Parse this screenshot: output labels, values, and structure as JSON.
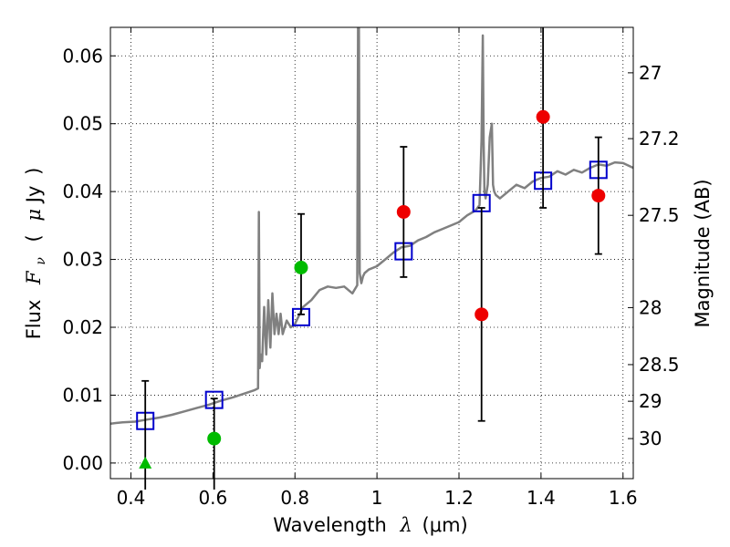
{
  "chart_data": {
    "type": "scatter",
    "xlabel_main": "Wavelength",
    "xlabel_symbol": "λ",
    "xlabel_unit": "(μm)",
    "ylabel_main": "Flux",
    "ylabel_symbol": "F",
    "ylabel_subscript": "ν",
    "ylabel_paren_open": "(",
    "ylabel_mu": "μ",
    "ylabel_unit": "Jy",
    "ylabel_paren_close": ")",
    "y2label": "Magnitude (AB)",
    "xlim": [
      0.35,
      1.625
    ],
    "ylim": [
      -0.0023,
      0.0642
    ],
    "xticks": [
      0.4,
      0.6,
      0.8,
      1.0,
      1.2,
      1.4,
      1.6
    ],
    "xtick_labels": [
      "0.4",
      "0.6",
      "0.8",
      "1",
      "1.2",
      "1.4",
      "1.6"
    ],
    "yticks": [
      0.0,
      0.01,
      0.02,
      0.03,
      0.04,
      0.05,
      0.06
    ],
    "ytick_labels": [
      "0.00",
      "0.01",
      "0.02",
      "0.03",
      "0.04",
      "0.05",
      "0.06"
    ],
    "y2_ticks": [
      {
        "label": "27",
        "flux": 0.0575
      },
      {
        "label": "27.2",
        "flux": 0.0478
      },
      {
        "label": "27.5",
        "flux": 0.0365
      },
      {
        "label": "28",
        "flux": 0.0229
      },
      {
        "label": "28.5",
        "flux": 0.0145
      },
      {
        "label": "29",
        "flux": 0.0091
      },
      {
        "label": "30",
        "flux": 0.0036
      }
    ],
    "grid": true,
    "series": [
      {
        "kind": "line",
        "color": "#808080",
        "x": [
          0.35,
          0.38,
          0.41,
          0.44,
          0.47,
          0.5,
          0.53,
          0.56,
          0.59,
          0.62,
          0.65,
          0.68,
          0.7,
          0.71,
          0.712,
          0.714,
          0.716,
          0.72,
          0.725,
          0.73,
          0.735,
          0.74,
          0.745,
          0.75,
          0.755,
          0.76,
          0.765,
          0.77,
          0.78,
          0.79,
          0.8,
          0.82,
          0.84,
          0.86,
          0.88,
          0.9,
          0.92,
          0.94,
          0.952,
          0.954,
          0.956,
          0.958,
          0.96,
          0.962,
          0.966,
          0.97,
          0.98,
          1.0,
          1.02,
          1.04,
          1.06,
          1.08,
          1.1,
          1.12,
          1.14,
          1.16,
          1.18,
          1.2,
          1.22,
          1.24,
          1.25,
          1.255,
          1.258,
          1.26,
          1.262,
          1.265,
          1.27,
          1.275,
          1.28,
          1.283,
          1.286,
          1.29,
          1.3,
          1.32,
          1.34,
          1.36,
          1.38,
          1.4,
          1.42,
          1.44,
          1.46,
          1.48,
          1.5,
          1.52,
          1.54,
          1.56,
          1.58,
          1.6,
          1.625
        ],
        "y": [
          0.0058,
          0.006,
          0.0061,
          0.0064,
          0.0067,
          0.0071,
          0.0076,
          0.0081,
          0.0086,
          0.0092,
          0.0097,
          0.0103,
          0.0107,
          0.011,
          0.037,
          0.014,
          0.016,
          0.015,
          0.023,
          0.016,
          0.024,
          0.017,
          0.025,
          0.019,
          0.022,
          0.019,
          0.022,
          0.019,
          0.021,
          0.02,
          0.0205,
          0.023,
          0.024,
          0.0255,
          0.026,
          0.0258,
          0.026,
          0.025,
          0.0262,
          0.065,
          0.065,
          0.028,
          0.0272,
          0.0265,
          0.0275,
          0.028,
          0.0285,
          0.029,
          0.03,
          0.031,
          0.0318,
          0.032,
          0.0328,
          0.0333,
          0.034,
          0.0345,
          0.035,
          0.0355,
          0.0365,
          0.0372,
          0.038,
          0.0475,
          0.063,
          0.0475,
          0.04,
          0.039,
          0.041,
          0.048,
          0.05,
          0.041,
          0.04,
          0.0395,
          0.039,
          0.04,
          0.041,
          0.0405,
          0.0415,
          0.042,
          0.0422,
          0.043,
          0.0425,
          0.0432,
          0.0428,
          0.0435,
          0.044,
          0.0438,
          0.0443,
          0.0442,
          0.0435
        ]
      },
      {
        "kind": "markers",
        "marker": "square-open",
        "color": "#0000cc",
        "x": [
          0.435,
          0.603,
          0.815,
          1.065,
          1.255,
          1.405,
          1.54
        ],
        "y": [
          0.0062,
          0.0093,
          0.0215,
          0.0312,
          0.0383,
          0.0416,
          0.0432
        ]
      },
      {
        "kind": "errorbars",
        "color": "#000000",
        "x": [
          0.435,
          0.603,
          0.815,
          1.065,
          1.255,
          1.405,
          1.54
        ],
        "y": [
          0.0,
          0.0036,
          0.0288,
          0.037,
          0.0219,
          0.051,
          0.0394
        ],
        "yerr_low": [
          0.0,
          0.0036,
          0.0069,
          0.0096,
          0.0157,
          0.0134,
          0.0086
        ],
        "yerr_high": [
          0.0121,
          0.0059,
          0.0079,
          0.0096,
          0.0157,
          0.0134,
          0.0086
        ],
        "extends_below_axis": [
          true,
          true,
          false,
          false,
          false,
          false,
          false
        ],
        "extends_above_axis": [
          false,
          false,
          false,
          false,
          false,
          true,
          false
        ]
      },
      {
        "kind": "markers",
        "marker": "triangle",
        "color": "#00bb00",
        "x": [
          0.435
        ],
        "y": [
          0.0
        ]
      },
      {
        "kind": "markers",
        "marker": "circle",
        "color": "#00bb00",
        "x": [
          0.603,
          0.815
        ],
        "y": [
          0.0036,
          0.0288
        ]
      },
      {
        "kind": "markers",
        "marker": "circle",
        "color": "#ee0000",
        "x": [
          1.065,
          1.255,
          1.405,
          1.54
        ],
        "y": [
          0.037,
          0.0219,
          0.051,
          0.0394
        ]
      }
    ]
  }
}
